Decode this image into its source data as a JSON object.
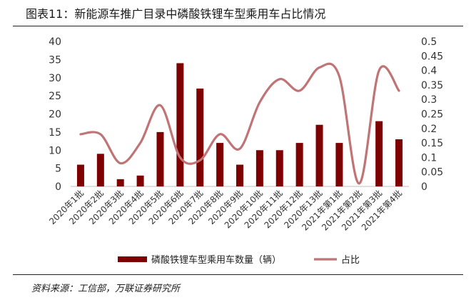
{
  "title": "图表11：新能源车推广目录中磷酸铁锂车型乘用车占比情况",
  "source": "资料来源：工信部，万联证券研究所",
  "chart_data": {
    "type": "bar",
    "categories": [
      "2020年1批",
      "2020年2批",
      "2020年3批",
      "2020年4批",
      "2020年5批",
      "2020年6批",
      "2020年7批",
      "2020年8批",
      "2020年9批",
      "2020年10批",
      "2020年11批",
      "2020年12批",
      "2020年13批",
      "2021年第1批",
      "2021年第2批",
      "2021年第3批",
      "2021年第4批"
    ],
    "series": [
      {
        "name": "磷酸铁锂车型乘用车数量（辆）",
        "type": "bar",
        "axis": "left",
        "color": "#7f0000",
        "values": [
          6,
          9,
          2,
          3,
          15,
          34,
          27,
          12,
          6,
          10,
          10,
          12,
          17,
          12,
          0,
          18,
          13
        ]
      },
      {
        "name": "占比",
        "type": "line",
        "axis": "right",
        "color": "#c07476",
        "values": [
          0.18,
          0.18,
          0.08,
          0.15,
          0.28,
          0.1,
          0.09,
          0.18,
          0.13,
          0.29,
          0.37,
          0.33,
          0.41,
          0.38,
          0.01,
          0.4,
          0.33
        ]
      }
    ],
    "y_left": {
      "min": 0,
      "max": 40,
      "step": 5,
      "ticks": [
        "0",
        "5",
        "10",
        "15",
        "20",
        "25",
        "30",
        "35",
        "40"
      ]
    },
    "y_right": {
      "min": 0,
      "max": 0.5,
      "step": 0.05,
      "ticks": [
        "0",
        "0.05",
        "0.1",
        "0.15",
        "0.2",
        "0.25",
        "0.3",
        "0.35",
        "0.4",
        "0.45",
        "0.5"
      ]
    },
    "grid": false,
    "legend": "bottom"
  }
}
